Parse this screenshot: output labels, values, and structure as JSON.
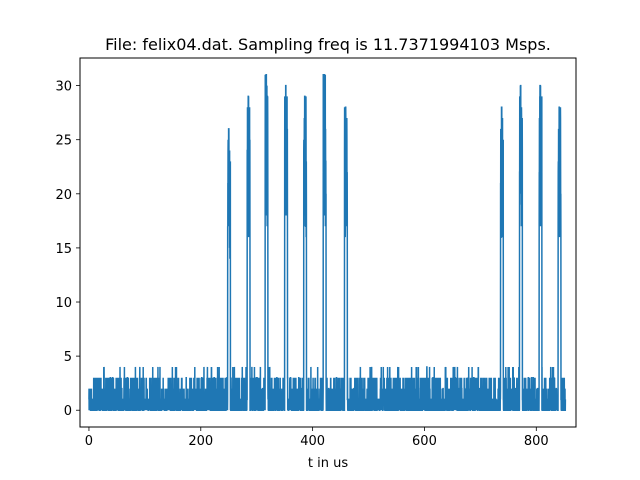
{
  "chart_data": {
    "type": "line",
    "title": "File: felix04.dat. Sampling freq is 11.7371994103 Msps.",
    "xlabel": "t in us",
    "ylabel": "",
    "xlim": [
      -16,
      871
    ],
    "ylim": [
      -1.55,
      32.55
    ],
    "xticks": [
      0,
      200,
      400,
      600,
      800
    ],
    "yticks": [
      0,
      5,
      10,
      15,
      20,
      25,
      30
    ],
    "grid": false,
    "color": "#1f77b4",
    "series": [
      {
        "noise_floor_max": 4,
        "x_range": [
          0,
          852
        ],
        "peaks": [
          {
            "x": 250,
            "y": 26
          },
          {
            "x": 285,
            "y": 29
          },
          {
            "x": 317,
            "y": 31
          },
          {
            "x": 352,
            "y": 30
          },
          {
            "x": 386,
            "y": 29
          },
          {
            "x": 421,
            "y": 31
          },
          {
            "x": 459,
            "y": 28
          },
          {
            "x": 738,
            "y": 28
          },
          {
            "x": 772,
            "y": 30
          },
          {
            "x": 807,
            "y": 30
          },
          {
            "x": 841,
            "y": 28
          }
        ]
      }
    ]
  }
}
